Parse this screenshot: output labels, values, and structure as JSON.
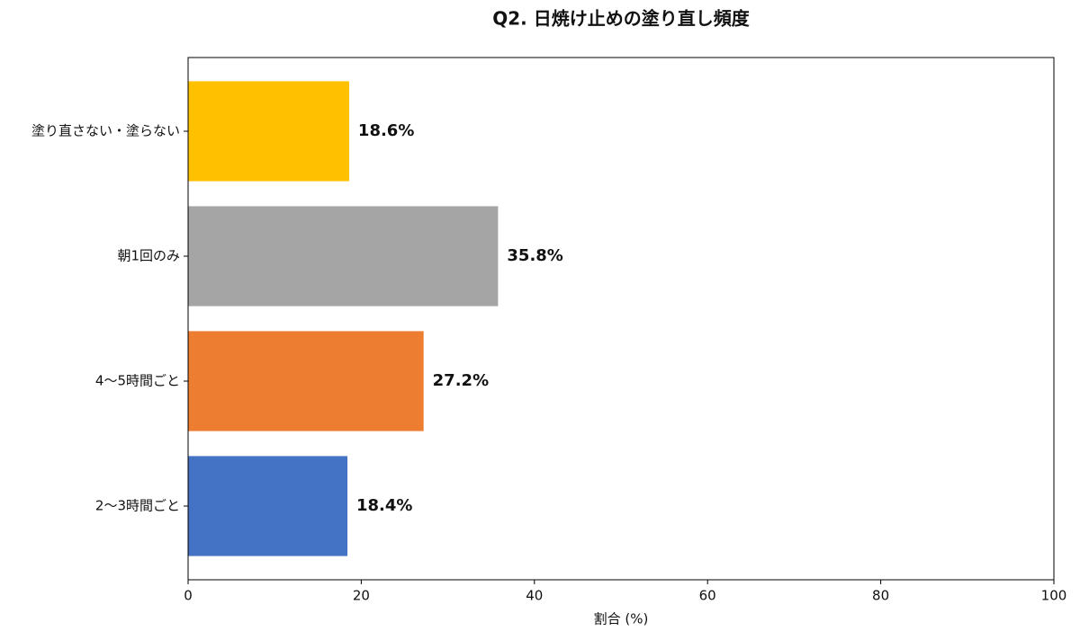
{
  "chart_data": {
    "type": "barh",
    "title": "Q2. 日焼け止めの塗り直し頻度",
    "categories": [
      "2〜3時間ごと",
      "4〜5時間ごと",
      "朝1回のみ",
      "塗り直さない・塗らない"
    ],
    "values": [
      18.4,
      27.2,
      35.8,
      18.6
    ],
    "value_labels": [
      "18.4%",
      "27.2%",
      "35.8%",
      "18.6%"
    ],
    "colors": [
      "#4472c4",
      "#ed7d31",
      "#a5a5a5",
      "#ffc000"
    ],
    "xlabel": "割合 (%)",
    "xlim": [
      0,
      100
    ],
    "xticks": [
      0,
      20,
      40,
      60,
      80,
      100
    ],
    "grid": false
  }
}
